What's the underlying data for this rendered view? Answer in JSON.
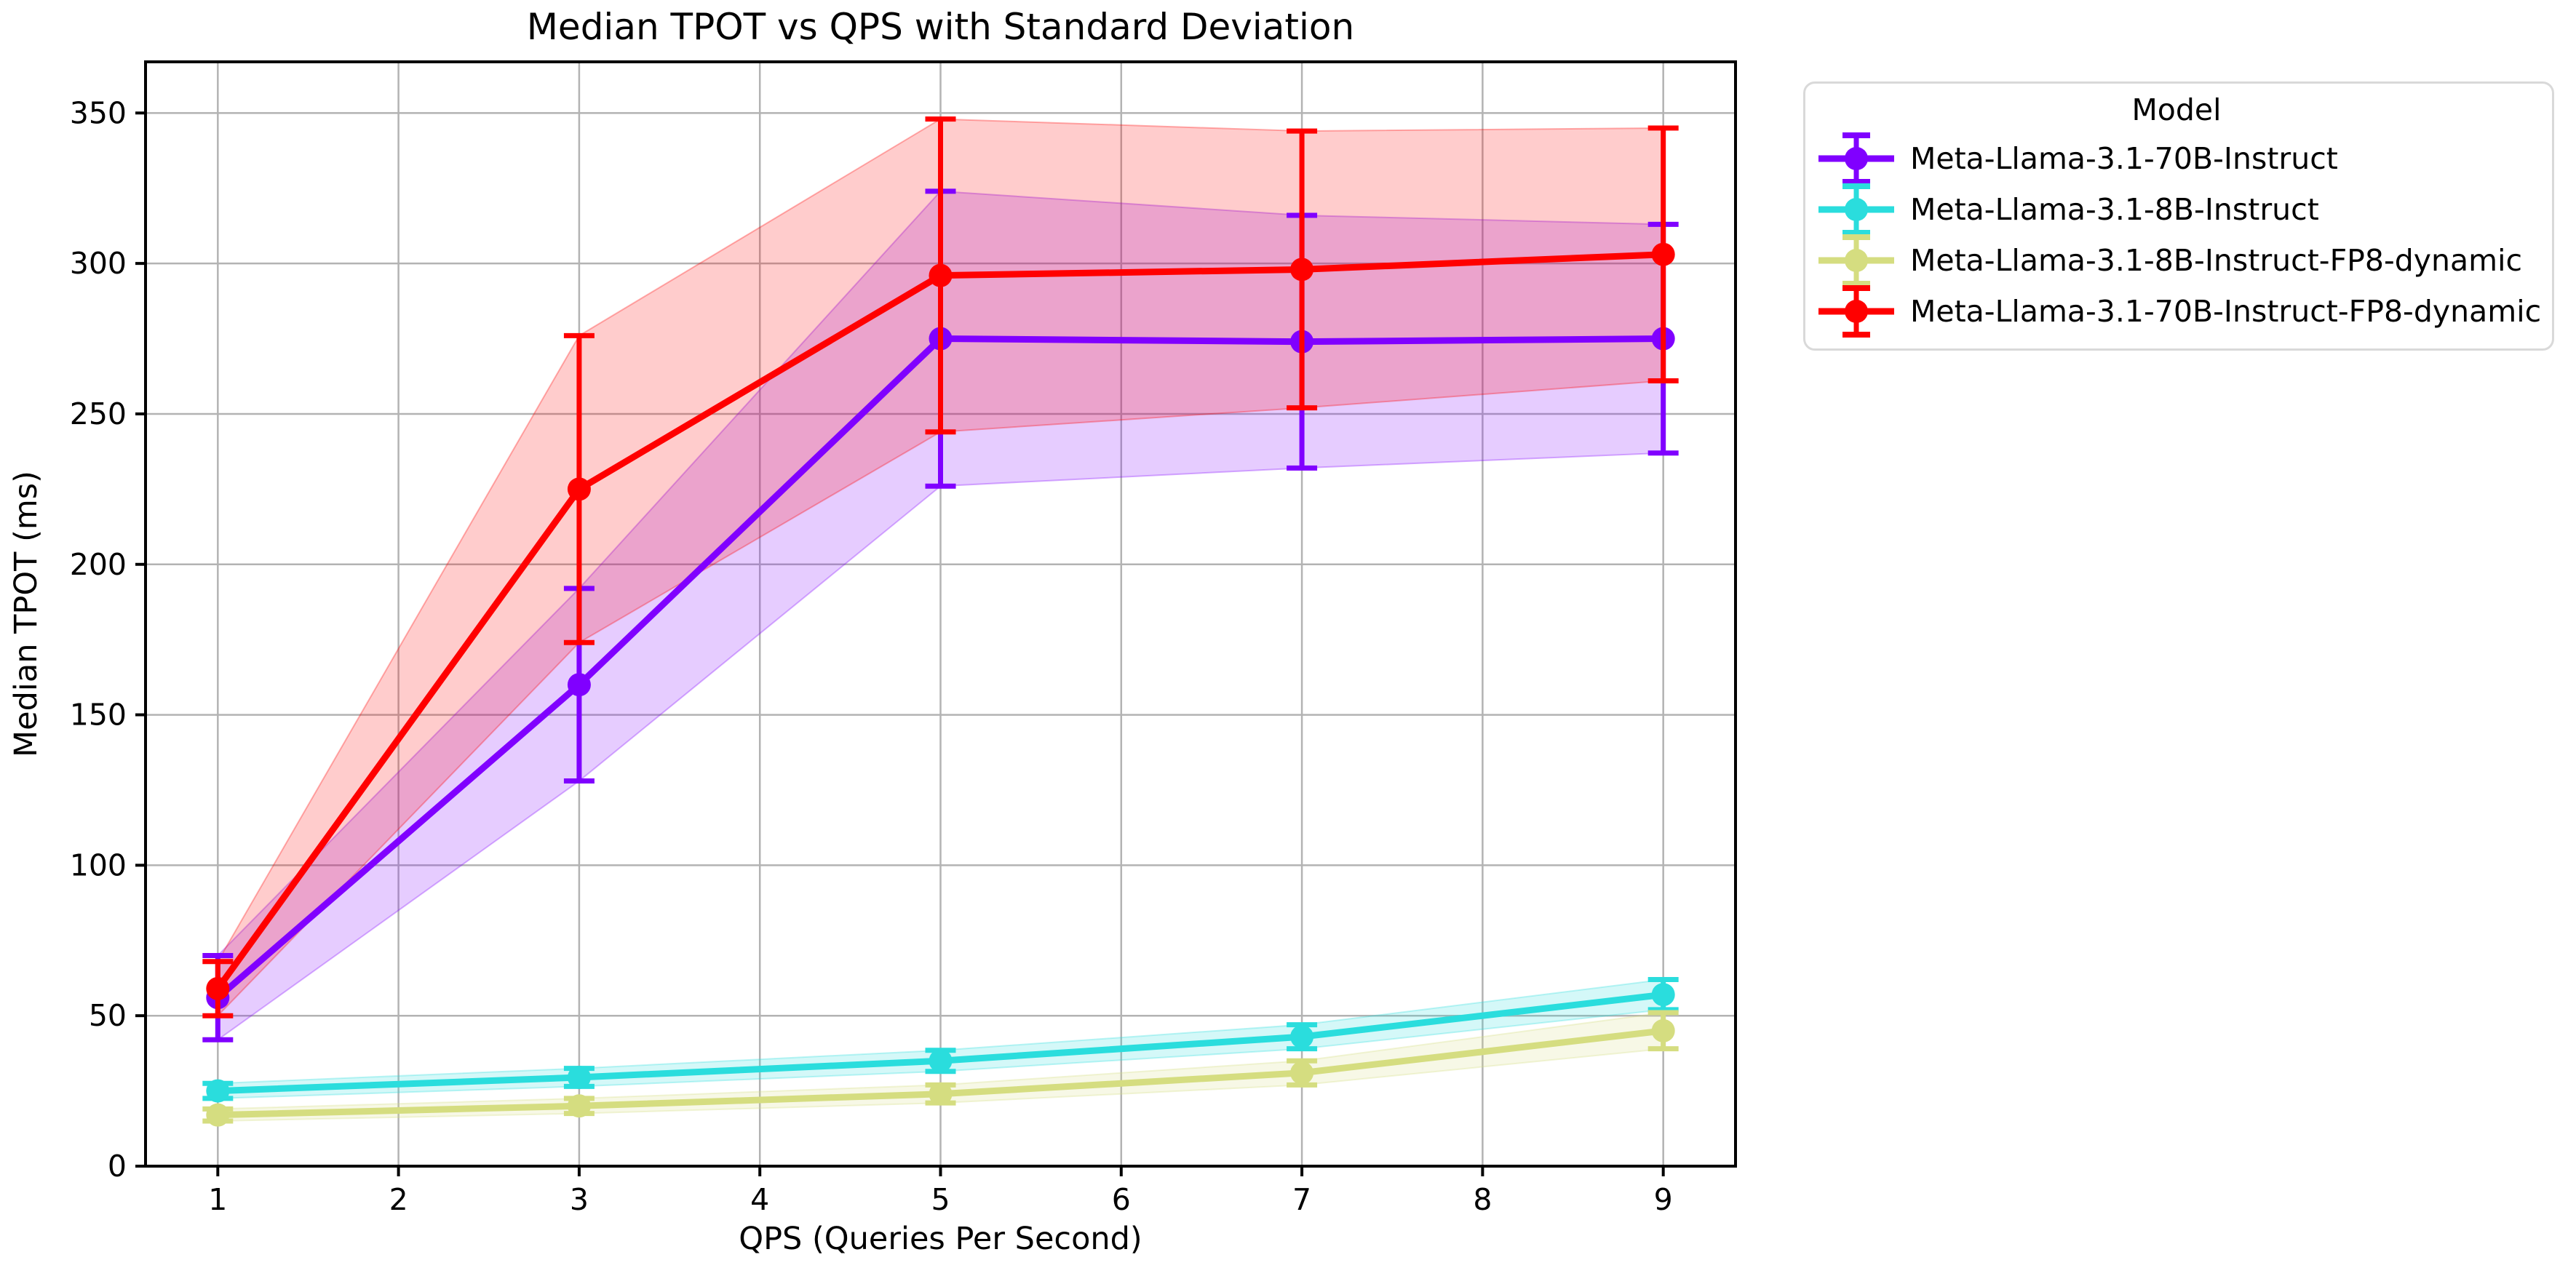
{
  "figure": {
    "title": "Median TPOT vs QPS with Standard Deviation"
  },
  "legend": {
    "title": "Model",
    "position": "outside-upper-right"
  },
  "chart_data": {
    "type": "line",
    "title": "Median TPOT vs QPS with Standard Deviation",
    "xlabel": "QPS (Queries Per Second)",
    "ylabel": "Median TPOT (ms)",
    "x": [
      1,
      3,
      5,
      7,
      9
    ],
    "xticks": [
      1,
      2,
      3,
      4,
      5,
      6,
      7,
      8,
      9
    ],
    "yticks": [
      0,
      50,
      100,
      150,
      200,
      250,
      300,
      350
    ],
    "xlim": [
      0.6,
      9.4
    ],
    "ylim": [
      0,
      367
    ],
    "grid": true,
    "grid_color": "#b3b3b3",
    "marker": "circle",
    "error_style": "errorbar-with-caps-plus-shaded-band",
    "band_alpha": 0.2,
    "legend_title": "Model",
    "series": [
      {
        "name": "Meta-Llama-3.1-70B-Instruct",
        "color": "#8000FF",
        "values": [
          56,
          160,
          275,
          274,
          275
        ],
        "std": [
          14,
          32,
          49,
          42,
          38
        ]
      },
      {
        "name": "Meta-Llama-3.1-8B-Instruct",
        "color": "#2ADDDD",
        "values": [
          25,
          29.5,
          35,
          43,
          57
        ],
        "std": [
          2.5,
          3,
          3.5,
          4,
          5
        ]
      },
      {
        "name": "Meta-Llama-3.1-8B-Instruct-FP8-dynamic",
        "color": "#D5DD80",
        "values": [
          17,
          20,
          24,
          31,
          45
        ],
        "std": [
          2,
          2.5,
          3,
          4,
          6
        ]
      },
      {
        "name": "Meta-Llama-3.1-70B-Instruct-FP8-dynamic",
        "color": "#FF0000",
        "values": [
          59,
          225,
          296,
          298,
          303
        ],
        "std": [
          9,
          51,
          52,
          46,
          42
        ]
      }
    ]
  }
}
